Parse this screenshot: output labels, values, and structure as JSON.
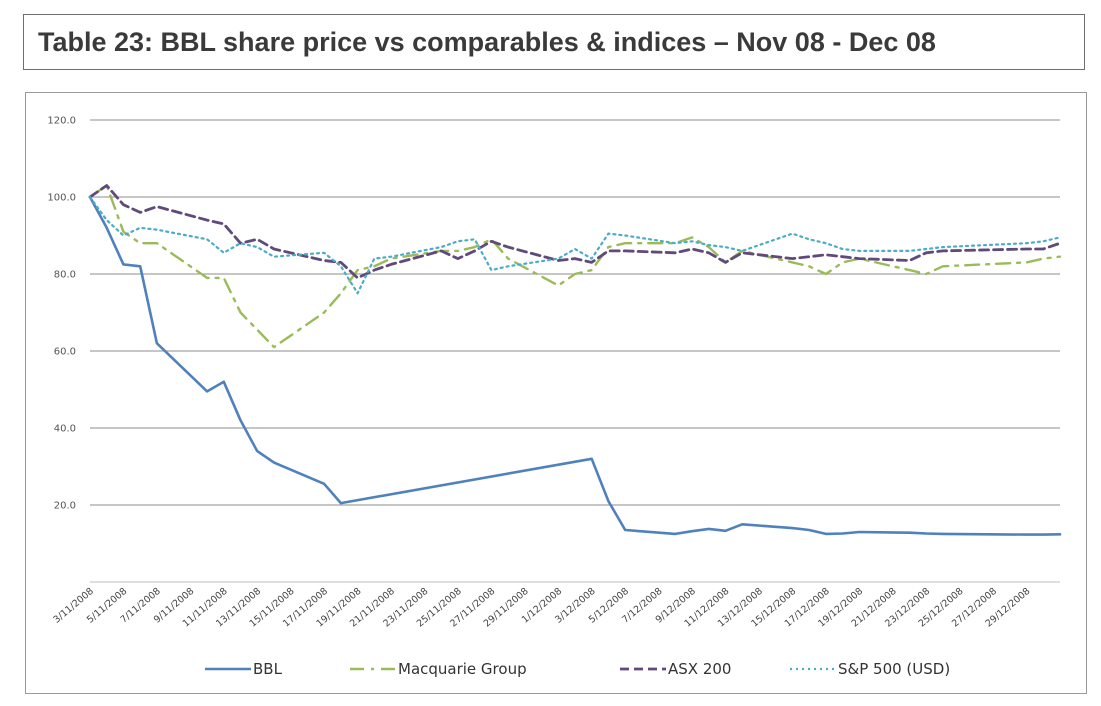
{
  "title": "Table 23: BBL share price vs comparables & indices – Nov 08 - Dec 08",
  "chart_data": {
    "type": "line",
    "title": "Table 23: BBL share price vs comparables & indices – Nov 08 - Dec 08",
    "ylim": [
      0,
      120
    ],
    "yticks": [
      "",
      "20.0",
      "40.0",
      "60.0",
      "80.0",
      "100.0",
      "120.0"
    ],
    "grid": "horizontal",
    "legend_position": "bottom",
    "x": [
      "3/11/2008",
      "4/11/2008",
      "5/11/2008",
      "6/11/2008",
      "7/11/2008",
      "10/11/2008",
      "11/11/2008",
      "12/11/2008",
      "13/11/2008",
      "14/11/2008",
      "17/11/2008",
      "18/11/2008",
      "19/11/2008",
      "20/11/2008",
      "21/11/2008",
      "24/11/2008",
      "25/11/2008",
      "26/11/2008",
      "27/11/2008",
      "28/11/2008",
      "1/12/2008",
      "2/12/2008",
      "3/12/2008",
      "4/12/2008",
      "5/12/2008",
      "8/12/2008",
      "9/12/2008",
      "10/12/2008",
      "11/12/2008",
      "12/12/2008",
      "15/12/2008",
      "16/12/2008",
      "17/12/2008",
      "18/12/2008",
      "19/12/2008",
      "22/12/2008",
      "23/12/2008",
      "24/12/2008",
      "29/12/2008",
      "30/12/2008",
      "31/12/2008"
    ],
    "xticks": [
      "3/11/2008",
      "5/11/2008",
      "7/11/2008",
      "9/11/2008",
      "11/11/2008",
      "13/11/2008",
      "15/11/2008",
      "17/11/2008",
      "19/11/2008",
      "21/11/2008",
      "23/11/2008",
      "25/11/2008",
      "27/11/2008",
      "29/11/2008",
      "1/12/2008",
      "3/12/2008",
      "5/12/2008",
      "7/12/2008",
      "9/12/2008",
      "11/12/2008",
      "13/12/2008",
      "15/12/2008",
      "17/12/2008",
      "19/12/2008",
      "21/12/2008",
      "23/12/2008",
      "25/12/2008",
      "27/12/2008",
      "29/12/2008"
    ],
    "series": [
      {
        "name": "BBL",
        "color": "#4f81bd",
        "style": "solid",
        "width": 2.6,
        "points": [
          [
            "3/11/2008",
            100
          ],
          [
            "4/11/2008",
            92
          ],
          [
            "5/11/2008",
            82.5
          ],
          [
            "6/11/2008",
            82
          ],
          [
            "7/11/2008",
            62
          ],
          [
            "10/11/2008",
            49.5
          ],
          [
            "11/11/2008",
            52
          ],
          [
            "12/11/2008",
            42
          ],
          [
            "13/11/2008",
            34
          ],
          [
            "14/11/2008",
            31
          ],
          [
            "17/11/2008",
            25.5
          ],
          [
            "18/11/2008",
            20.5
          ],
          [
            "3/12/2008",
            32
          ],
          [
            "4/12/2008",
            21
          ],
          [
            "5/12/2008",
            13.5
          ],
          [
            "8/12/2008",
            12.5
          ],
          [
            "9/12/2008",
            13.2
          ],
          [
            "10/12/2008",
            13.8
          ],
          [
            "11/12/2008",
            13.3
          ],
          [
            "12/12/2008",
            15
          ],
          [
            "15/12/2008",
            14
          ],
          [
            "16/12/2008",
            13.5
          ],
          [
            "17/12/2008",
            12.5
          ],
          [
            "18/12/2008",
            12.6
          ],
          [
            "19/12/2008",
            13
          ],
          [
            "22/12/2008",
            12.8
          ],
          [
            "23/12/2008",
            12.6
          ],
          [
            "24/12/2008",
            12.5
          ],
          [
            "29/12/2008",
            12.3
          ],
          [
            "30/12/2008",
            12.3
          ],
          [
            "31/12/2008",
            12.4
          ]
        ]
      },
      {
        "name": "Macquarie Group",
        "color": "#9bbb59",
        "style": "dashdot",
        "width": 2.4,
        "points": [
          [
            "3/11/2008",
            100
          ],
          [
            "4/11/2008",
            103
          ],
          [
            "5/11/2008",
            91
          ],
          [
            "6/11/2008",
            88
          ],
          [
            "7/11/2008",
            88
          ],
          [
            "10/11/2008",
            79
          ],
          [
            "11/11/2008",
            79
          ],
          [
            "12/11/2008",
            70
          ],
          [
            "14/11/2008",
            61
          ],
          [
            "17/11/2008",
            70
          ],
          [
            "18/11/2008",
            75
          ],
          [
            "19/11/2008",
            81
          ],
          [
            "20/11/2008",
            82
          ],
          [
            "21/11/2008",
            84
          ],
          [
            "24/11/2008",
            86
          ],
          [
            "25/11/2008",
            86
          ],
          [
            "26/11/2008",
            87
          ],
          [
            "27/11/2008",
            89
          ],
          [
            "28/11/2008",
            84
          ],
          [
            "1/12/2008",
            77
          ],
          [
            "2/12/2008",
            80
          ],
          [
            "3/12/2008",
            81
          ],
          [
            "4/12/2008",
            87
          ],
          [
            "5/12/2008",
            88
          ],
          [
            "8/12/2008",
            88
          ],
          [
            "9/12/2008",
            89.5
          ],
          [
            "10/12/2008",
            87
          ],
          [
            "11/12/2008",
            83
          ],
          [
            "12/12/2008",
            86
          ],
          [
            "15/12/2008",
            83
          ],
          [
            "16/12/2008",
            82
          ],
          [
            "17/12/2008",
            80
          ],
          [
            "18/12/2008",
            83
          ],
          [
            "19/12/2008",
            84
          ],
          [
            "22/12/2008",
            81
          ],
          [
            "23/12/2008",
            80
          ],
          [
            "24/12/2008",
            82
          ],
          [
            "29/12/2008",
            83
          ],
          [
            "30/12/2008",
            84
          ],
          [
            "31/12/2008",
            84.5
          ]
        ]
      },
      {
        "name": "ASX 200",
        "color": "#604a7b",
        "style": "dashed",
        "width": 2.8,
        "points": [
          [
            "3/11/2008",
            100
          ],
          [
            "4/11/2008",
            103
          ],
          [
            "5/11/2008",
            98
          ],
          [
            "6/11/2008",
            96
          ],
          [
            "7/11/2008",
            97.5
          ],
          [
            "10/11/2008",
            94
          ],
          [
            "11/11/2008",
            93
          ],
          [
            "12/11/2008",
            88
          ],
          [
            "13/11/2008",
            89
          ],
          [
            "14/11/2008",
            86.5
          ],
          [
            "17/11/2008",
            83.5
          ],
          [
            "18/11/2008",
            83
          ],
          [
            "19/11/2008",
            79
          ],
          [
            "20/11/2008",
            81
          ],
          [
            "21/11/2008",
            82.5
          ],
          [
            "24/11/2008",
            86
          ],
          [
            "25/11/2008",
            84
          ],
          [
            "26/11/2008",
            86
          ],
          [
            "27/11/2008",
            88.5
          ],
          [
            "28/11/2008",
            87
          ],
          [
            "1/12/2008",
            83.5
          ],
          [
            "2/12/2008",
            84
          ],
          [
            "3/12/2008",
            83
          ],
          [
            "4/12/2008",
            86
          ],
          [
            "5/12/2008",
            86
          ],
          [
            "8/12/2008",
            85.5
          ],
          [
            "9/12/2008",
            86.5
          ],
          [
            "10/12/2008",
            85.5
          ],
          [
            "11/12/2008",
            83
          ],
          [
            "12/12/2008",
            85.5
          ],
          [
            "15/12/2008",
            84
          ],
          [
            "16/12/2008",
            84.5
          ],
          [
            "17/12/2008",
            85
          ],
          [
            "18/12/2008",
            84.5
          ],
          [
            "19/12/2008",
            84
          ],
          [
            "22/12/2008",
            83.5
          ],
          [
            "23/12/2008",
            85.5
          ],
          [
            "24/12/2008",
            86
          ],
          [
            "29/12/2008",
            86.5
          ],
          [
            "30/12/2008",
            86.5
          ],
          [
            "31/12/2008",
            88
          ]
        ]
      },
      {
        "name": "S&P 500 (USD)",
        "color": "#4bacc6",
        "style": "dotted",
        "width": 2.2,
        "points": [
          [
            "3/11/2008",
            100
          ],
          [
            "4/11/2008",
            94
          ],
          [
            "5/11/2008",
            90
          ],
          [
            "6/11/2008",
            92
          ],
          [
            "7/11/2008",
            91.5
          ],
          [
            "10/11/2008",
            89
          ],
          [
            "11/11/2008",
            85.5
          ],
          [
            "12/11/2008",
            88
          ],
          [
            "13/11/2008",
            87
          ],
          [
            "14/11/2008",
            84.5
          ],
          [
            "17/11/2008",
            85.5
          ],
          [
            "18/11/2008",
            82
          ],
          [
            "19/11/2008",
            75
          ],
          [
            "20/11/2008",
            84
          ],
          [
            "21/11/2008",
            84.5
          ],
          [
            "24/11/2008",
            87
          ],
          [
            "25/11/2008",
            88.5
          ],
          [
            "26/11/2008",
            89
          ],
          [
            "27/11/2008",
            81
          ],
          [
            "28/11/2008",
            82
          ],
          [
            "1/12/2008",
            84
          ],
          [
            "2/12/2008",
            86.5
          ],
          [
            "3/12/2008",
            84
          ],
          [
            "4/12/2008",
            90.5
          ],
          [
            "5/12/2008",
            90
          ],
          [
            "8/12/2008",
            88
          ],
          [
            "9/12/2008",
            88.5
          ],
          [
            "10/12/2008",
            87.5
          ],
          [
            "11/12/2008",
            87
          ],
          [
            "12/12/2008",
            86
          ],
          [
            "15/12/2008",
            90.5
          ],
          [
            "16/12/2008",
            89
          ],
          [
            "17/12/2008",
            88
          ],
          [
            "18/12/2008",
            86.5
          ],
          [
            "19/12/2008",
            86
          ],
          [
            "22/12/2008",
            86
          ],
          [
            "23/12/2008",
            86.5
          ],
          [
            "24/12/2008",
            87
          ],
          [
            "29/12/2008",
            88
          ],
          [
            "30/12/2008",
            88.5
          ],
          [
            "31/12/2008",
            89.5
          ]
        ]
      }
    ]
  }
}
